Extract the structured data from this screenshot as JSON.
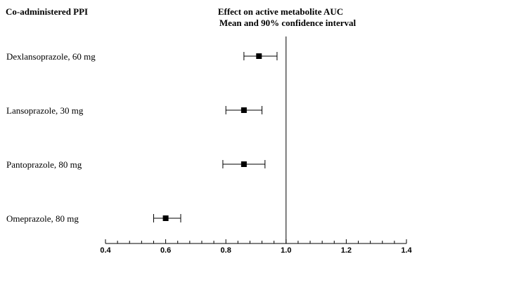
{
  "header": {
    "left_title": "Co-administered PPI",
    "title_line1": "Effect on active metabolite AUC",
    "title_line2": "Mean and 90% confidence interval"
  },
  "chart_data": {
    "type": "scatter",
    "subtype": "forest-plot",
    "categories": [
      "Dexlansoprazole, 60 mg",
      "Lansoprazole, 30 mg",
      "Pantoprazole, 80 mg",
      "Omeprazole, 80 mg"
    ],
    "points": [
      {
        "label": "Dexlansoprazole, 60 mg",
        "mean": 0.91,
        "ci_low": 0.86,
        "ci_high": 0.97
      },
      {
        "label": "Lansoprazole, 30 mg",
        "mean": 0.86,
        "ci_low": 0.8,
        "ci_high": 0.92
      },
      {
        "label": "Pantoprazole, 80 mg",
        "mean": 0.86,
        "ci_low": 0.79,
        "ci_high": 0.93
      },
      {
        "label": "Omeprazole, 80 mg",
        "mean": 0.6,
        "ci_low": 0.56,
        "ci_high": 0.65
      }
    ],
    "xlim": [
      0.4,
      1.4
    ],
    "xticks": [
      "0.4",
      "0.6",
      "0.8",
      "1.0",
      "1.2",
      "1.4"
    ],
    "reference_line": 1.0,
    "marker_color": "#000000",
    "grid": false
  }
}
